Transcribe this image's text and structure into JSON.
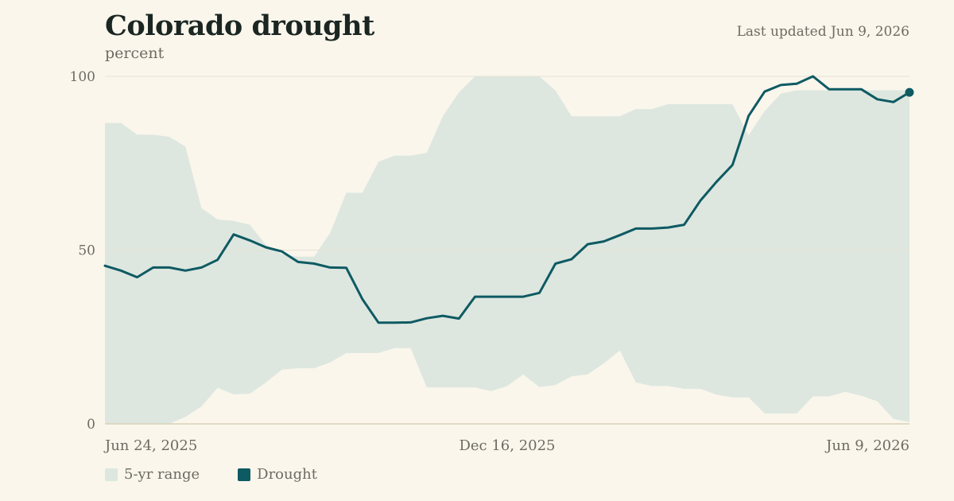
{
  "header": {
    "title": "Colorado drought",
    "subtitle": "percent",
    "updated": "Last updated Jun 9, 2026"
  },
  "legend": {
    "range_label": "5-yr range",
    "line_label": "Drought"
  },
  "colors": {
    "background": "#faf6ec",
    "range_fill": "#dde7df",
    "line": "#0e5a63",
    "axis": "#d9d0b8",
    "grid": "#e8e2d3",
    "muted_text": "#6e6b63"
  },
  "chart_data": {
    "type": "line",
    "title": "Colorado drought",
    "ylabel": "percent",
    "ylim": [
      0,
      100
    ],
    "y_ticks": [
      0,
      50,
      100
    ],
    "x_tick_labels": [
      "Jun 24, 2025",
      "Dec 16, 2025",
      "Jun 9, 2026"
    ],
    "x_tick_index": [
      0,
      25,
      50
    ],
    "grid": true,
    "legend_position": "bottom-left",
    "series": [
      {
        "name": "Drought",
        "kind": "line",
        "values": [
          45.5,
          44.1,
          42.2,
          45.0,
          45.0,
          44.1,
          45.0,
          47.2,
          54.5,
          52.8,
          50.8,
          49.6,
          46.6,
          46.1,
          45.0,
          44.9,
          35.9,
          29.1,
          29.1,
          29.2,
          30.4,
          31.1,
          30.3,
          36.6,
          36.6,
          36.6,
          36.6,
          37.7,
          46.1,
          47.4,
          51.7,
          52.5,
          54.3,
          56.2,
          56.2,
          56.5,
          57.3,
          64.2,
          69.6,
          74.5,
          88.6,
          95.6,
          97.5,
          97.9,
          100.0,
          96.3,
          96.3,
          96.3,
          93.4,
          92.6,
          95.4
        ]
      },
      {
        "name": "5-yr range",
        "kind": "band",
        "lower": [
          0,
          0,
          0,
          0,
          0,
          2.0,
          5.0,
          10.4,
          8.5,
          8.7,
          11.9,
          15.6,
          16.0,
          16.0,
          17.7,
          20.4,
          20.4,
          20.4,
          21.8,
          21.8,
          10.5,
          10.5,
          10.5,
          10.5,
          9.4,
          10.9,
          14.2,
          10.6,
          11.2,
          13.7,
          14.2,
          17.4,
          21.1,
          11.9,
          10.9,
          10.9,
          10.1,
          10.1,
          8.4,
          7.6,
          7.6,
          3.0,
          3.0,
          3.0,
          7.9,
          7.9,
          9.2,
          8.1,
          6.5,
          1.4,
          0.5
        ],
        "upper": [
          86.6,
          86.6,
          83.2,
          83.2,
          82.6,
          79.8,
          62.1,
          58.8,
          58.4,
          57.3,
          51.5,
          48.8,
          48.1,
          48.1,
          55.0,
          66.5,
          66.5,
          75.4,
          77.2,
          77.2,
          78.0,
          88.5,
          95.4,
          100.0,
          100.0,
          100.0,
          100.0,
          100.0,
          95.9,
          88.5,
          88.5,
          88.5,
          88.5,
          90.6,
          90.6,
          92.0,
          92.0,
          92.0,
          92.0,
          92.0,
          83.0,
          90.0,
          95.0,
          96.0,
          96.0,
          96.0,
          96.0,
          96.0,
          96.0,
          96.0,
          96.0
        ]
      }
    ]
  }
}
